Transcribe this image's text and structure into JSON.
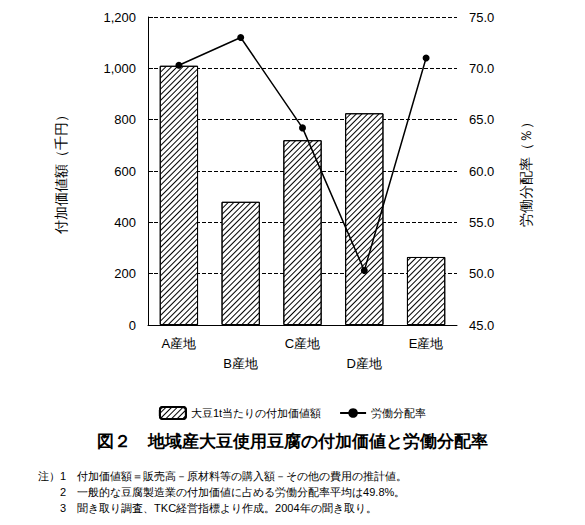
{
  "chart_data": {
    "type": "bar",
    "title": "図２　地域産大豆使用豆腐の付加価値と労働分配率",
    "annotations": [
      "注）1　付加価値額＝販売高－原材料等の購入額－その他の費用の推計値。",
      "2　一般的な豆腐製造業の付加価値に占める労働分配率平均は49.8%。",
      "3　聞き取り調査、TKC経営指標より作成。2004年の聞き取り。"
    ],
    "y_label": "付加価値額（千円）",
    "y2_label": "労働分配率（％）",
    "categories": [
      "A産地",
      "B産地",
      "C産地",
      "D産地",
      "E産地"
    ],
    "series": [
      {
        "name": "大豆1t当たりの付加価値額",
        "type": "bar",
        "color": "#000000",
        "values": [
          1010,
          480,
          720,
          825,
          265
        ]
      },
      {
        "name": "労働分配率",
        "type": "line",
        "axis": "y2",
        "color": "#000000",
        "marker": "circle",
        "values": [
          70.3,
          73.0,
          64.2,
          50.3,
          71.0
        ]
      }
    ],
    "ylim": [
      0,
      1200
    ],
    "yticks": [
      0,
      200,
      400,
      600,
      800,
      {
        "value": 1000,
        "label": "1,000"
      },
      {
        "value": 1200,
        "label": "1,200"
      }
    ],
    "y2lim": [
      45,
      75
    ],
    "y2ticks": [
      {
        "value": 45,
        "label": "45.0"
      },
      {
        "value": 50,
        "label": "50.0"
      },
      {
        "value": 55,
        "label": "55.0"
      },
      {
        "value": 60,
        "label": "60.0"
      },
      {
        "value": 65,
        "label": "65.0"
      },
      {
        "value": 70,
        "label": "70.0"
      },
      {
        "value": 75,
        "label": "75.0"
      }
    ],
    "grid": true,
    "legend": "bottom"
  }
}
